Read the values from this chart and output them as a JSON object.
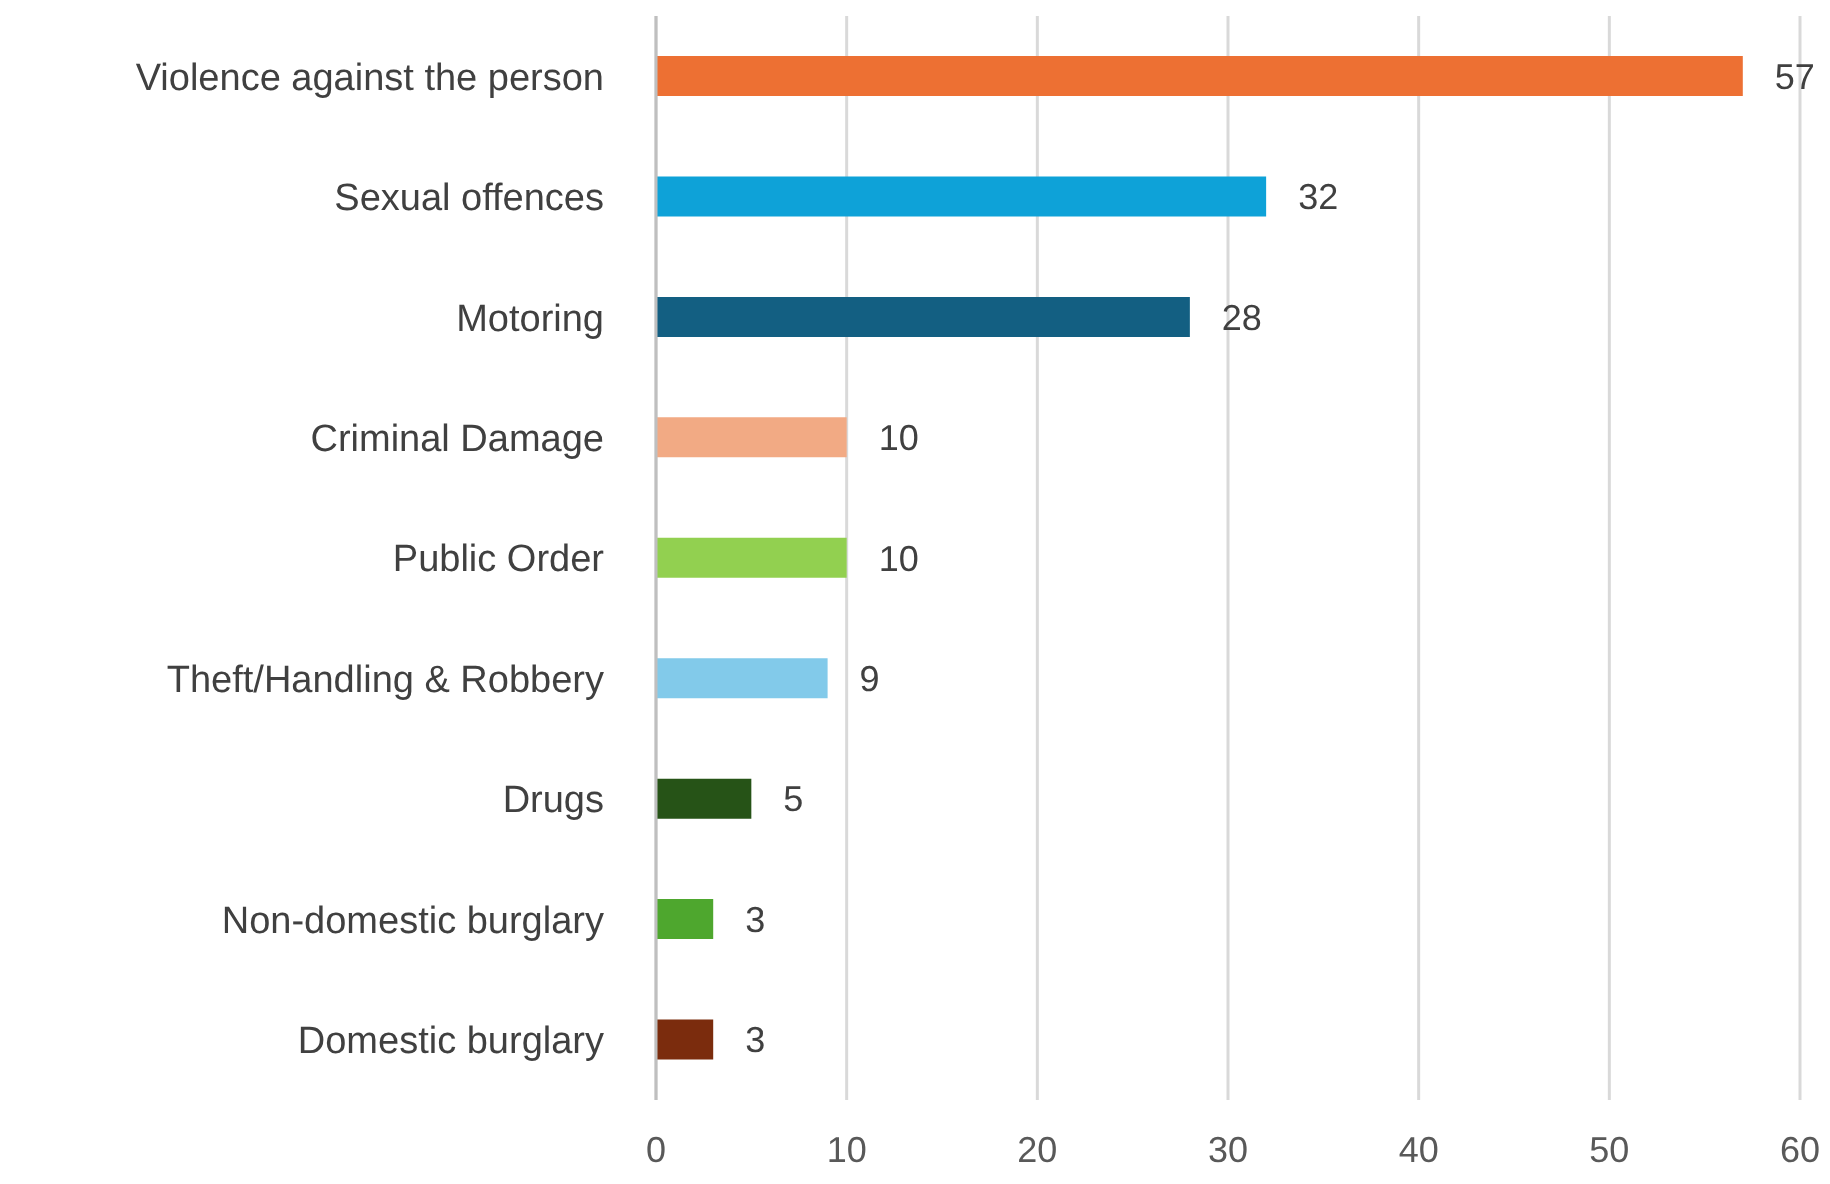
{
  "chart_data": {
    "type": "bar",
    "orientation": "horizontal",
    "categories": [
      "Violence against the person",
      "Sexual offences",
      "Motoring",
      "Criminal Damage",
      "Public Order",
      "Theft/Handling & Robbery",
      "Drugs",
      "Non-domestic burglary",
      "Domestic burglary"
    ],
    "values": [
      57,
      32,
      28,
      10,
      10,
      9,
      5,
      3,
      3
    ],
    "colors": [
      "#ed7033",
      "#0ea2d8",
      "#135f82",
      "#f2aa84",
      "#92d050",
      "#82caea",
      "#265317",
      "#4ea72e",
      "#7b2c0d"
    ],
    "xlim": [
      0,
      60
    ],
    "xticks": [
      0,
      10,
      20,
      30,
      40,
      50,
      60
    ],
    "grid": "x",
    "data_labels": true
  }
}
